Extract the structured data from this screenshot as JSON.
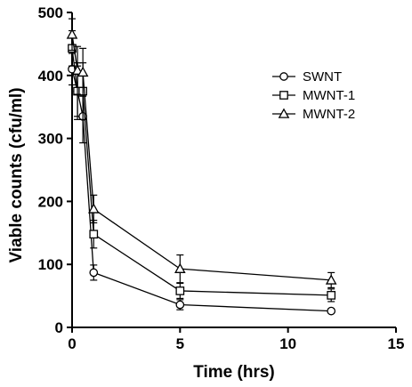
{
  "chart_data": {
    "type": "line",
    "title": "",
    "xlabel": "Time (hrs)",
    "ylabel": "Viable counts (cfu/ml)",
    "xlim": [
      0,
      15
    ],
    "ylim": [
      0,
      500
    ],
    "xticks": [
      0,
      5,
      10,
      15
    ],
    "yticks": [
      0,
      100,
      200,
      300,
      400,
      500
    ],
    "grid": false,
    "legend_position": "right",
    "series": [
      {
        "name": "SWNT",
        "marker": "circle",
        "x": [
          0,
          0.25,
          0.5,
          1,
          5,
          12
        ],
        "y": [
          410,
          375,
          335,
          87,
          36,
          26
        ],
        "err": [
          25,
          40,
          42,
          12,
          8,
          3
        ]
      },
      {
        "name": "MWNT-1",
        "marker": "square",
        "x": [
          0,
          0.25,
          0.5,
          1,
          5,
          12
        ],
        "y": [
          443,
          375,
          375,
          148,
          58,
          51
        ],
        "err": [
          28,
          45,
          45,
          22,
          12,
          10
        ]
      },
      {
        "name": "MWNT-2",
        "marker": "triangle",
        "x": [
          0,
          0.25,
          0.5,
          1,
          5,
          12
        ],
        "y": [
          465,
          408,
          405,
          188,
          93,
          75
        ],
        "err": [
          25,
          38,
          38,
          22,
          22,
          12
        ]
      }
    ]
  }
}
